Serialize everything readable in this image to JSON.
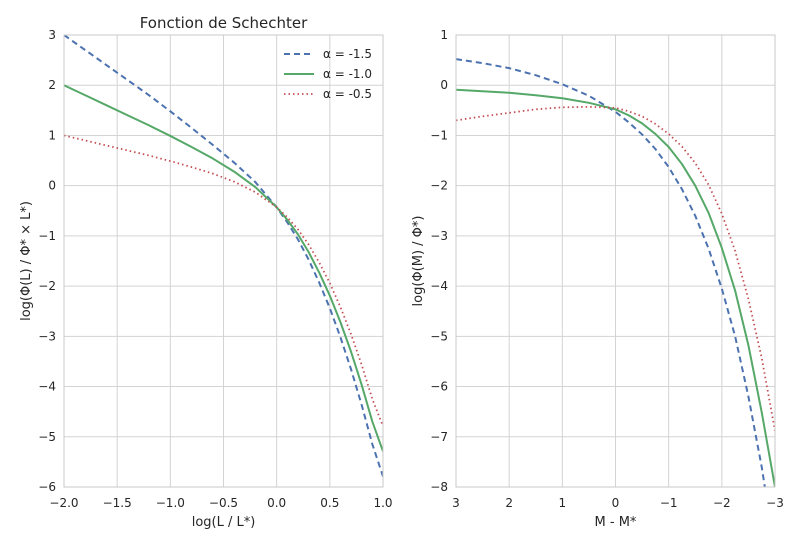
{
  "chart_data": [
    {
      "type": "line",
      "title": "Fonction de Schechter",
      "xlabel": "log(L / L*)",
      "ylabel": "log(Φ(L) / Φ* × L*)",
      "xlim": [
        -2.0,
        1.0
      ],
      "ylim": [
        -6,
        3
      ],
      "xticks": [
        -2.0,
        -1.5,
        -1.0,
        -0.5,
        0.0,
        0.5,
        1.0
      ],
      "xtick_labels": [
        "−2.0",
        "−1.5",
        "−1.0",
        "−0.5",
        "0.0",
        "0.5",
        "1.0"
      ],
      "yticks": [
        -6,
        -5,
        -4,
        -3,
        -2,
        -1,
        0,
        1,
        2,
        3
      ],
      "ytick_labels": [
        "−6",
        "−5",
        "−4",
        "−3",
        "−2",
        "−1",
        "0",
        "1",
        "2",
        "3"
      ],
      "grid": true,
      "legend": "top-right",
      "x": [
        -2.0,
        -1.8,
        -1.6,
        -1.4,
        -1.2,
        -1.0,
        -0.8,
        -0.6,
        -0.4,
        -0.2,
        0.0,
        0.1,
        0.2,
        0.3,
        0.4,
        0.5,
        0.6,
        0.7,
        0.8,
        0.9,
        1.0
      ],
      "series": [
        {
          "name": "α = -1.5",
          "color": "#4c72b0",
          "style": "dashed",
          "values": [
            3.0,
            2.7,
            2.4,
            2.1,
            1.8,
            1.48,
            1.15,
            0.81,
            0.46,
            0.07,
            -0.43,
            -0.73,
            -1.07,
            -1.47,
            -1.93,
            -2.44,
            -3.02,
            -3.66,
            -4.37,
            -5.15,
            -5.79
          ]
        },
        {
          "name": "α = -1.0",
          "color": "#55a868",
          "style": "solid",
          "values": [
            2.0,
            1.8,
            1.6,
            1.4,
            1.2,
            0.99,
            0.77,
            0.54,
            0.28,
            -0.03,
            -0.43,
            -0.68,
            -0.97,
            -1.32,
            -1.73,
            -2.19,
            -2.72,
            -3.31,
            -3.97,
            -4.7,
            -5.29
          ]
        },
        {
          "name": "α = -0.5",
          "color": "#c44e52",
          "style": "dotted",
          "values": [
            1.0,
            0.9,
            0.8,
            0.7,
            0.6,
            0.49,
            0.37,
            0.24,
            0.08,
            -0.13,
            -0.43,
            -0.63,
            -0.87,
            -1.17,
            -1.53,
            -1.94,
            -2.42,
            -2.96,
            -3.57,
            -4.25,
            -4.79
          ]
        }
      ]
    },
    {
      "type": "line",
      "title": "",
      "xlabel": "M - M*",
      "ylabel": "log(Φ(M) / Φ*)",
      "xlim": [
        3,
        -3
      ],
      "ylim": [
        -8,
        1
      ],
      "xticks": [
        3,
        2,
        1,
        0,
        -1,
        -2,
        -3
      ],
      "xtick_labels": [
        "3",
        "2",
        "1",
        "0",
        "−1",
        "−2",
        "−3"
      ],
      "yticks": [
        -8,
        -7,
        -6,
        -5,
        -4,
        -3,
        -2,
        -1,
        0,
        1
      ],
      "ytick_labels": [
        "−8",
        "−7",
        "−6",
        "−5",
        "−4",
        "−3",
        "−2",
        "−1",
        "0",
        "1"
      ],
      "grid": true,
      "x": [
        3.0,
        2.5,
        2.0,
        1.5,
        1.0,
        0.5,
        0.0,
        -0.25,
        -0.5,
        -0.75,
        -1.0,
        -1.25,
        -1.5,
        -1.75,
        -2.0,
        -2.25,
        -2.5,
        -2.75,
        -3.0
      ],
      "series": [
        {
          "name": "α = -1.5",
          "color": "#4c72b0",
          "style": "dashed",
          "values": [
            0.52,
            0.44,
            0.34,
            0.2,
            0.02,
            -0.21,
            -0.53,
            -0.74,
            -0.98,
            -1.27,
            -1.63,
            -2.07,
            -2.6,
            -3.25,
            -4.05,
            -5.0,
            -6.2,
            -7.6,
            -9.3
          ]
        },
        {
          "name": "α = -1.0",
          "color": "#55a868",
          "style": "solid",
          "values": [
            -0.09,
            -0.12,
            -0.15,
            -0.2,
            -0.26,
            -0.35,
            -0.48,
            -0.6,
            -0.76,
            -0.97,
            -1.23,
            -1.57,
            -2.0,
            -2.54,
            -3.24,
            -4.09,
            -5.18,
            -6.51,
            -8.0
          ]
        },
        {
          "name": "α = -0.5",
          "color": "#c44e52",
          "style": "dotted",
          "values": [
            -0.7,
            -0.62,
            -0.55,
            -0.48,
            -0.44,
            -0.43,
            -0.45,
            -0.52,
            -0.62,
            -0.77,
            -0.97,
            -1.22,
            -1.55,
            -1.98,
            -2.56,
            -3.3,
            -4.26,
            -5.43,
            -6.88
          ]
        }
      ]
    }
  ]
}
